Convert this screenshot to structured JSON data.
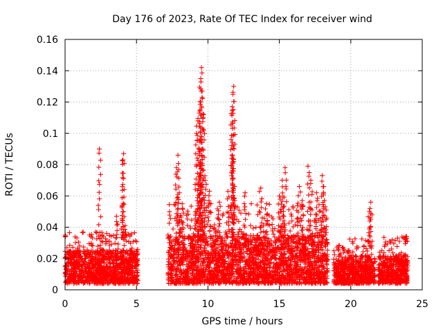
{
  "chart_data": {
    "type": "scatter",
    "title": "Day 176 of 2023, Rate Of TEC Index for receiver wind",
    "xlabel": "GPS time / hours",
    "ylabel": "ROTI / TECUs",
    "xlim": [
      0,
      25
    ],
    "ylim": [
      0,
      0.16
    ],
    "xticks": [
      "0",
      "5",
      "10",
      "15",
      "20",
      "25"
    ],
    "yticks": [
      "0",
      "0.02",
      "0.04",
      "0.06",
      "0.08",
      "0.1",
      "0.12",
      "0.14",
      "0.16"
    ],
    "grid": true,
    "marker": "+",
    "color": "#ff0000",
    "series": [
      {
        "segments": [
          {
            "x": [
              0.0,
              5.1
            ],
            "base_max": 0.025,
            "spike_max": 0.037
          },
          {
            "x": [
              7.2,
              18.4
            ],
            "base_max": 0.035,
            "spike_max": 0.055
          },
          {
            "x": [
              18.8,
              19.9
            ],
            "base_max": 0.02,
            "spike_max": 0.028
          },
          {
            "x": [
              19.9,
              21.7
            ],
            "base_max": 0.022,
            "spike_max": 0.033
          },
          {
            "x": [
              21.9,
              24.0
            ],
            "base_max": 0.022,
            "spike_max": 0.034
          }
        ],
        "peaks": [
          [
            2.4,
            0.09
          ],
          [
            4.1,
            0.087
          ],
          [
            4.05,
            0.083
          ],
          [
            4.0,
            0.054
          ],
          [
            3.6,
            0.047
          ],
          [
            4.2,
            0.041
          ],
          [
            7.9,
            0.086
          ],
          [
            7.8,
            0.078
          ],
          [
            8.0,
            0.062
          ],
          [
            8.2,
            0.055
          ],
          [
            9.2,
            0.1
          ],
          [
            9.3,
            0.108
          ],
          [
            9.4,
            0.113
          ],
          [
            9.5,
            0.12
          ],
          [
            9.5,
            0.135
          ],
          [
            9.55,
            0.142
          ],
          [
            9.6,
            0.127
          ],
          [
            9.7,
            0.112
          ],
          [
            9.4,
            0.086
          ],
          [
            9.6,
            0.08
          ],
          [
            9.8,
            0.07
          ],
          [
            10.1,
            0.063
          ],
          [
            10.8,
            0.056
          ],
          [
            11.4,
            0.063
          ],
          [
            11.7,
            0.117
          ],
          [
            11.8,
            0.13
          ],
          [
            11.75,
            0.125
          ],
          [
            11.8,
            0.099
          ],
          [
            11.8,
            0.082
          ],
          [
            12.6,
            0.062
          ],
          [
            13.7,
            0.065
          ],
          [
            14.1,
            0.055
          ],
          [
            15.4,
            0.078
          ],
          [
            15.2,
            0.07
          ],
          [
            15.0,
            0.06
          ],
          [
            16.4,
            0.066
          ],
          [
            17.0,
            0.079
          ],
          [
            17.2,
            0.07
          ],
          [
            16.6,
            0.057
          ],
          [
            17.6,
            0.062
          ],
          [
            18.0,
            0.073
          ],
          [
            18.1,
            0.066
          ],
          [
            19.1,
            0.026
          ],
          [
            21.4,
            0.056
          ],
          [
            21.3,
            0.05
          ],
          [
            23.9,
            0.034
          ]
        ]
      }
    ]
  }
}
